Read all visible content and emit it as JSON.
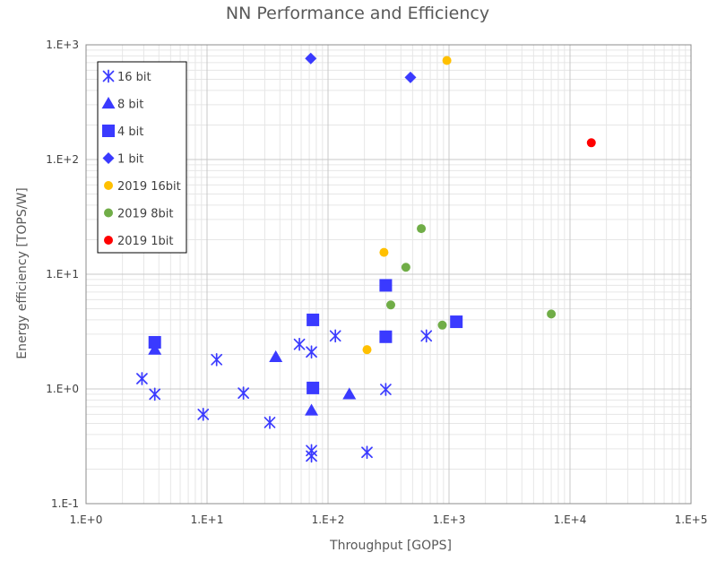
{
  "chart_data": {
    "type": "scatter",
    "title": "NN Performance and Efficiency",
    "xlabel": "Throughput [GOPS]",
    "ylabel": "Energy efficiency [TOPS/W]",
    "x_scale": "log",
    "y_scale": "log",
    "xlim": [
      1,
      100000
    ],
    "ylim": [
      0.1,
      1000
    ],
    "x_tick_values": [
      1,
      10,
      100,
      1000,
      10000,
      100000
    ],
    "x_tick_labels": [
      "1.E+0",
      "1.E+1",
      "1.E+2",
      "1.E+3",
      "1.E+4",
      "1.E+5"
    ],
    "y_tick_values": [
      0.1,
      1,
      10,
      100,
      1000
    ],
    "y_tick_labels": [
      "1.E-1",
      "1.E+0",
      "1.E+1",
      "1.E+2",
      "1.E+3"
    ],
    "grid": true,
    "legend_position": "top-left",
    "series": [
      {
        "name": "16 bit",
        "marker": "asterisk",
        "color": "#3a3aff",
        "points": [
          [
            2.9,
            1.23
          ],
          [
            3.7,
            0.9
          ],
          [
            9.3,
            0.6
          ],
          [
            12,
            1.8
          ],
          [
            20,
            0.92
          ],
          [
            33,
            0.51
          ],
          [
            58,
            2.45
          ],
          [
            73,
            2.1
          ],
          [
            73,
            0.29
          ],
          [
            73,
            0.26
          ],
          [
            115,
            2.9
          ],
          [
            210,
            0.28
          ],
          [
            300,
            0.99
          ],
          [
            650,
            2.9
          ]
        ]
      },
      {
        "name": "8 bit",
        "marker": "triangle",
        "color": "#3a3aff",
        "points": [
          [
            3.7,
            2.2
          ],
          [
            37,
            1.9
          ],
          [
            73,
            0.65
          ],
          [
            150,
            0.9
          ]
        ]
      },
      {
        "name": "4 bit",
        "marker": "square",
        "color": "#3a3aff",
        "points": [
          [
            3.7,
            2.55
          ],
          [
            75,
            1.02
          ],
          [
            75,
            4.0
          ],
          [
            300,
            8.0
          ],
          [
            300,
            2.85
          ],
          [
            1150,
            3.85
          ]
        ]
      },
      {
        "name": "1 bit",
        "marker": "diamond",
        "color": "#3a3aff",
        "points": [
          [
            72,
            760
          ],
          [
            480,
            520
          ]
        ]
      },
      {
        "name": "2019 16bit",
        "marker": "circle",
        "color": "#ffc000",
        "points": [
          [
            210,
            2.2
          ],
          [
            290,
            15.5
          ],
          [
            960,
            730
          ]
        ]
      },
      {
        "name": "2019 8bit",
        "marker": "circle",
        "color": "#70ad47",
        "points": [
          [
            330,
            5.4
          ],
          [
            440,
            11.5
          ],
          [
            590,
            25
          ],
          [
            880,
            3.6
          ],
          [
            7000,
            4.5
          ]
        ]
      },
      {
        "name": "2019 1bit",
        "marker": "circle",
        "color": "#ff0000",
        "points": [
          [
            15000,
            140
          ]
        ]
      }
    ]
  }
}
